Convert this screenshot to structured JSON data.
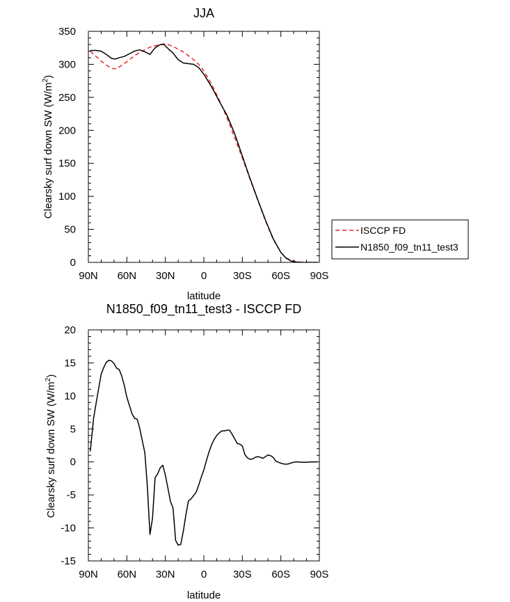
{
  "chart_data": [
    {
      "type": "line",
      "title": "JJA",
      "xlabel": "latitude",
      "ylabel": "Clearsky surf down SW (W/m",
      "ylabel_sup": "2",
      "ylabel_end": ")",
      "xlim": [
        90,
        -90
      ],
      "ylim": [
        0,
        350
      ],
      "xtick_values": [
        90,
        60,
        30,
        0,
        -30,
        -60,
        -90
      ],
      "xtick_labels": [
        "90N",
        "60N",
        "30N",
        "0",
        "30S",
        "60S",
        "90S"
      ],
      "ytick_values": [
        0,
        50,
        100,
        150,
        200,
        250,
        300,
        350
      ],
      "ytick_labels": [
        "0",
        "50",
        "100",
        "150",
        "200",
        "250",
        "300",
        "350"
      ],
      "grid": false,
      "legend_position": "right",
      "series": [
        {
          "name": "ISCCP FD",
          "color": "#e8262a",
          "dash": "dashed",
          "x": [
            88.5,
            84,
            80,
            76,
            72,
            69,
            66,
            62,
            58,
            54,
            50,
            46,
            42,
            38,
            34,
            31,
            28,
            24,
            20,
            16,
            12,
            8,
            4,
            0,
            -6,
            -12,
            -18,
            -24,
            -30,
            -36,
            -42,
            -48,
            -54,
            -60,
            -64,
            -68,
            -72,
            -76,
            -80,
            -84,
            -88.5
          ],
          "y": [
            320,
            312,
            305,
            299,
            294,
            293,
            296,
            301,
            307,
            313,
            318,
            322,
            326,
            328,
            330,
            331,
            330,
            327,
            323,
            319,
            313,
            307,
            300,
            290,
            270,
            246,
            219,
            189,
            158,
            126,
            94,
            63,
            35,
            15,
            7,
            3,
            1,
            0.3,
            0,
            0,
            0
          ]
        },
        {
          "name": "N1850_f09_tn11_test3",
          "color": "#000000",
          "dash": "solid",
          "x": [
            88.5,
            84,
            80,
            76,
            72,
            69,
            66,
            62,
            58,
            54,
            50,
            46,
            42,
            38,
            34,
            31,
            28,
            24,
            20,
            16,
            12,
            8,
            4,
            0,
            -6,
            -12,
            -18,
            -24,
            -30,
            -36,
            -42,
            -48,
            -54,
            -60,
            -64,
            -68,
            -72,
            -76,
            -80,
            -84,
            -88.5
          ],
          "y": [
            321,
            321,
            320,
            315,
            309,
            308,
            310,
            312,
            316,
            320,
            322,
            319,
            315,
            325,
            330,
            330,
            324,
            317,
            307,
            302,
            301,
            300,
            295,
            285,
            266,
            244,
            223,
            195,
            161,
            127,
            95,
            64,
            36,
            15,
            6.5,
            2,
            0.5,
            0.1,
            0,
            0,
            0
          ]
        }
      ]
    },
    {
      "type": "line",
      "title": "N1850_f09_tn11_test3 - ISCCP FD",
      "xlabel": "latitude",
      "ylabel": "Clearsky surf down SW (W/m",
      "ylabel_sup": "2",
      "ylabel_end": ")",
      "xlim": [
        90,
        -90
      ],
      "ylim": [
        -15,
        20
      ],
      "xtick_values": [
        90,
        60,
        30,
        0,
        -30,
        -60,
        -90
      ],
      "xtick_labels": [
        "90N",
        "60N",
        "30N",
        "0",
        "30S",
        "60S",
        "90S"
      ],
      "ytick_values": [
        -15,
        -10,
        -5,
        0,
        5,
        10,
        15,
        20
      ],
      "ytick_labels": [
        "-15",
        "-10",
        "-5",
        "0",
        "5",
        "10",
        "15",
        "20"
      ],
      "grid": false,
      "series": [
        {
          "color": "#000000",
          "dash": "solid",
          "x": [
            88.5,
            86,
            83,
            80,
            78,
            76,
            74,
            72,
            70,
            68,
            66,
            64,
            62,
            60,
            56,
            54,
            52,
            50,
            46,
            44,
            42,
            40,
            38,
            36,
            34,
            32,
            30,
            28,
            26,
            24,
            22,
            20,
            18,
            16,
            14,
            12,
            10,
            8,
            6,
            4,
            2,
            0,
            -2,
            -4,
            -6,
            -8,
            -10,
            -12,
            -14,
            -16,
            -18,
            -20,
            -22,
            -24,
            -26,
            -28,
            -30,
            -32,
            -34,
            -36,
            -38,
            -40,
            -42,
            -44,
            -46,
            -48,
            -50,
            -52,
            -54,
            -56,
            -58,
            -60,
            -62,
            -64,
            -66,
            -68,
            -70,
            -72,
            -74,
            -76,
            -78,
            -80,
            -82,
            -84,
            -86,
            -88.5
          ],
          "y": [
            1.6,
            6.5,
            10,
            13.3,
            14.3,
            15.1,
            15.4,
            15.3,
            14.9,
            14.2,
            14.0,
            13.0,
            11.6,
            9.8,
            7.3,
            6.6,
            6.5,
            5.1,
            1.4,
            -3.8,
            -11.0,
            -8.5,
            -2.4,
            -1.8,
            -0.9,
            -0.5,
            -2.0,
            -4.0,
            -6.0,
            -7.0,
            -11.9,
            -12.6,
            -12.5,
            -10.5,
            -8.0,
            -5.9,
            -5.6,
            -5.1,
            -4.6,
            -3.5,
            -2.3,
            -1.2,
            0.2,
            1.5,
            2.6,
            3.4,
            4.0,
            4.4,
            4.7,
            4.7,
            4.8,
            4.8,
            4.2,
            3.5,
            2.8,
            2.7,
            2.4,
            1.1,
            0.6,
            0.4,
            0.45,
            0.7,
            0.8,
            0.7,
            0.55,
            0.8,
            1.05,
            0.95,
            0.7,
            0.15,
            -0.05,
            -0.2,
            -0.3,
            -0.35,
            -0.3,
            -0.15,
            -0.05,
            0.0,
            0.0,
            -0.05,
            -0.05,
            -0.05,
            -0.02,
            0.0,
            0.0,
            0.0
          ]
        }
      ]
    }
  ]
}
